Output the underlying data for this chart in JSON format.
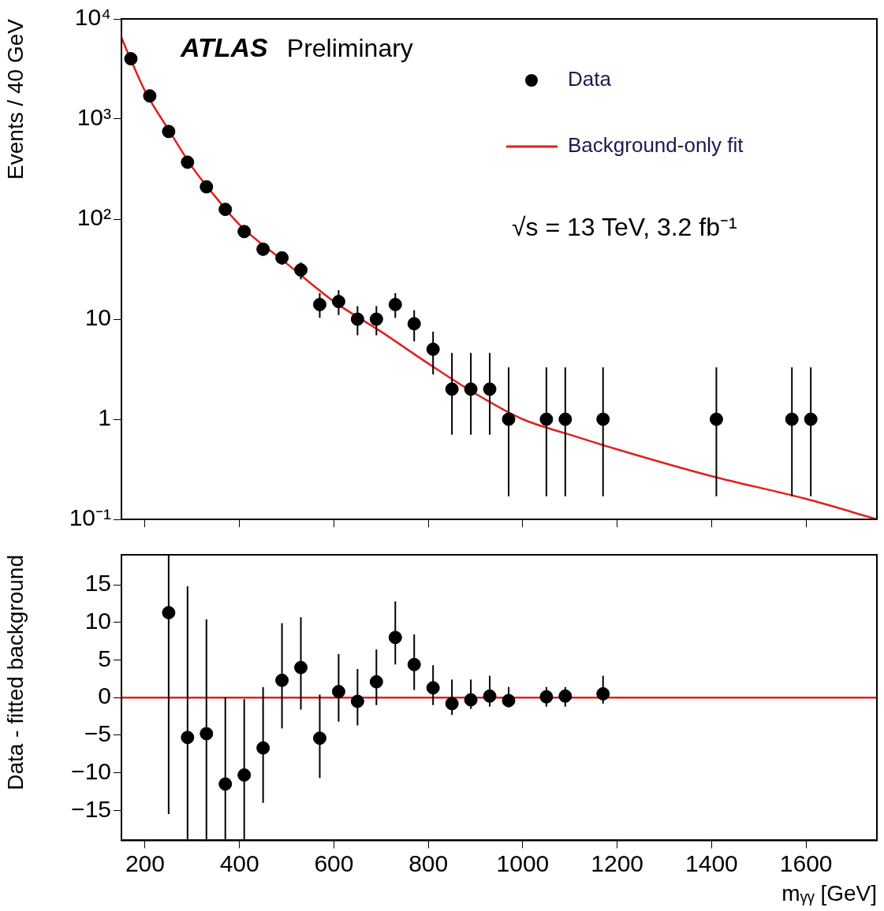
{
  "chart_data": [
    {
      "type": "scatter",
      "ylabel": "Events / 40 GeV",
      "log": "y",
      "xlim": [
        150,
        1750
      ],
      "xticks": [
        200,
        400,
        600,
        800,
        1000,
        1200,
        1400,
        1600
      ],
      "ylim": [
        0.1,
        10000
      ],
      "yticks": [
        {
          "value": 0.1,
          "label": "10⁻¹"
        },
        1,
        10,
        {
          "value": 100,
          "label": "10²"
        },
        {
          "value": 1000,
          "label": "10³"
        },
        {
          "value": 10000,
          "label": "10⁴"
        }
      ],
      "tick_labels": "y",
      "legend": "top right",
      "annotations": [
        "ATLAS",
        "Preliminary",
        "√s = 13 TeV, 3.2 fb⁻¹"
      ],
      "series": [
        {
          "name": "Data",
          "type": "scatter",
          "marker": "circle",
          "color": "#000000",
          "x": [
            170,
            210,
            250,
            290,
            330,
            370,
            410,
            450,
            490,
            530,
            570,
            610,
            650,
            690,
            730,
            770,
            810,
            850,
            890,
            930,
            970,
            1050,
            1090,
            1170,
            1410,
            1570,
            1610
          ],
          "values": [
            4000,
            1700,
            750,
            370,
            210,
            125,
            75,
            50,
            41,
            31,
            14,
            15,
            10,
            10,
            14,
            9,
            5,
            2,
            2,
            2,
            1,
            1,
            1,
            1,
            1,
            1,
            1
          ],
          "errors": [
            63,
            41,
            27,
            19,
            14,
            11,
            9,
            7,
            6,
            6,
            [
              10.3,
              18.2
            ],
            [
              11,
              19.5
            ],
            [
              6.9,
              13.5
            ],
            [
              6.9,
              13.5
            ],
            [
              10.3,
              18.2
            ],
            [
              6,
              12.3
            ],
            [
              2.8,
              7.5
            ],
            [
              0.7,
              4.6
            ],
            [
              0.7,
              4.6
            ],
            [
              0.7,
              4.6
            ],
            [
              0.17,
              3.3
            ],
            [
              0.17,
              3.3
            ],
            [
              0.17,
              3.3
            ],
            [
              0.17,
              3.3
            ],
            [
              0.17,
              3.3
            ],
            [
              0.17,
              3.3
            ],
            [
              0.17,
              3.3
            ]
          ]
        },
        {
          "name": "Background-only fit",
          "type": "line",
          "color": "#e02020",
          "x": [
            150,
            170,
            200,
            250,
            300,
            350,
            400,
            500,
            600,
            700,
            800,
            900,
            1000,
            1100,
            1200,
            1400,
            1600,
            1750
          ],
          "values": [
            6500,
            3900,
            1900,
            780,
            330,
            165,
            88,
            36,
            15,
            7.5,
            3.6,
            1.8,
            1.0,
            0.7,
            0.5,
            0.27,
            0.16,
            0.1
          ]
        }
      ]
    },
    {
      "type": "scatter",
      "ylabel": "Data - fitted background",
      "xlabel": "mᵧᵧ [GeV]",
      "xlim": [
        150,
        1750
      ],
      "xticks": [
        200,
        400,
        600,
        800,
        1000,
        1200,
        1400,
        1600
      ],
      "ylim": [
        -19,
        19
      ],
      "yticks": [
        {
          "value": -15,
          "label": "−15"
        },
        {
          "value": -10,
          "label": "−10"
        },
        {
          "value": -5,
          "label": "−5"
        },
        0,
        5,
        10,
        15
      ],
      "ref_lines": [
        {
          "axis": "y",
          "value": 0,
          "color": "#e02020"
        }
      ],
      "series": [
        {
          "type": "scatter",
          "marker": "circle",
          "color": "#000000",
          "x": [
            250,
            290,
            330,
            370,
            410,
            450,
            490,
            530,
            570,
            610,
            650,
            690,
            730,
            770,
            810,
            850,
            890,
            930,
            970,
            1050,
            1090,
            1170
          ],
          "values": [
            11.3,
            -5.3,
            -4.8,
            -11.5,
            -10.3,
            -6.7,
            2.3,
            4,
            -5.4,
            0.8,
            -0.5,
            2.1,
            8,
            4.4,
            1.3,
            -0.8,
            -0.3,
            0.2,
            -0.4,
            0.1,
            0.2,
            0.5
          ],
          "errors": [
            [
              -15.5,
              19
            ],
            [
              -19,
              14.8
            ],
            [
              -19,
              10.4
            ],
            [
              -19,
              0
            ],
            [
              -19,
              -0.2
            ],
            [
              -14,
              1.4
            ],
            [
              -4.1,
              9.9
            ],
            [
              -1.6,
              10.7
            ],
            [
              -10.7,
              0.4
            ],
            [
              -3.2,
              5.8
            ],
            [
              -3.7,
              3.8
            ],
            [
              -1,
              6.4
            ],
            [
              4.4,
              12.8
            ],
            [
              1,
              8.4
            ],
            [
              -1,
              4.3
            ],
            [
              -2.3,
              2.4
            ],
            [
              -1.5,
              2.4
            ],
            [
              -1.2,
              2.9
            ],
            [
              -1.3,
              1.4
            ],
            [
              -1.2,
              1.4
            ],
            [
              -1.2,
              1.4
            ],
            [
              -0.8,
              2.9
            ]
          ]
        }
      ]
    }
  ]
}
